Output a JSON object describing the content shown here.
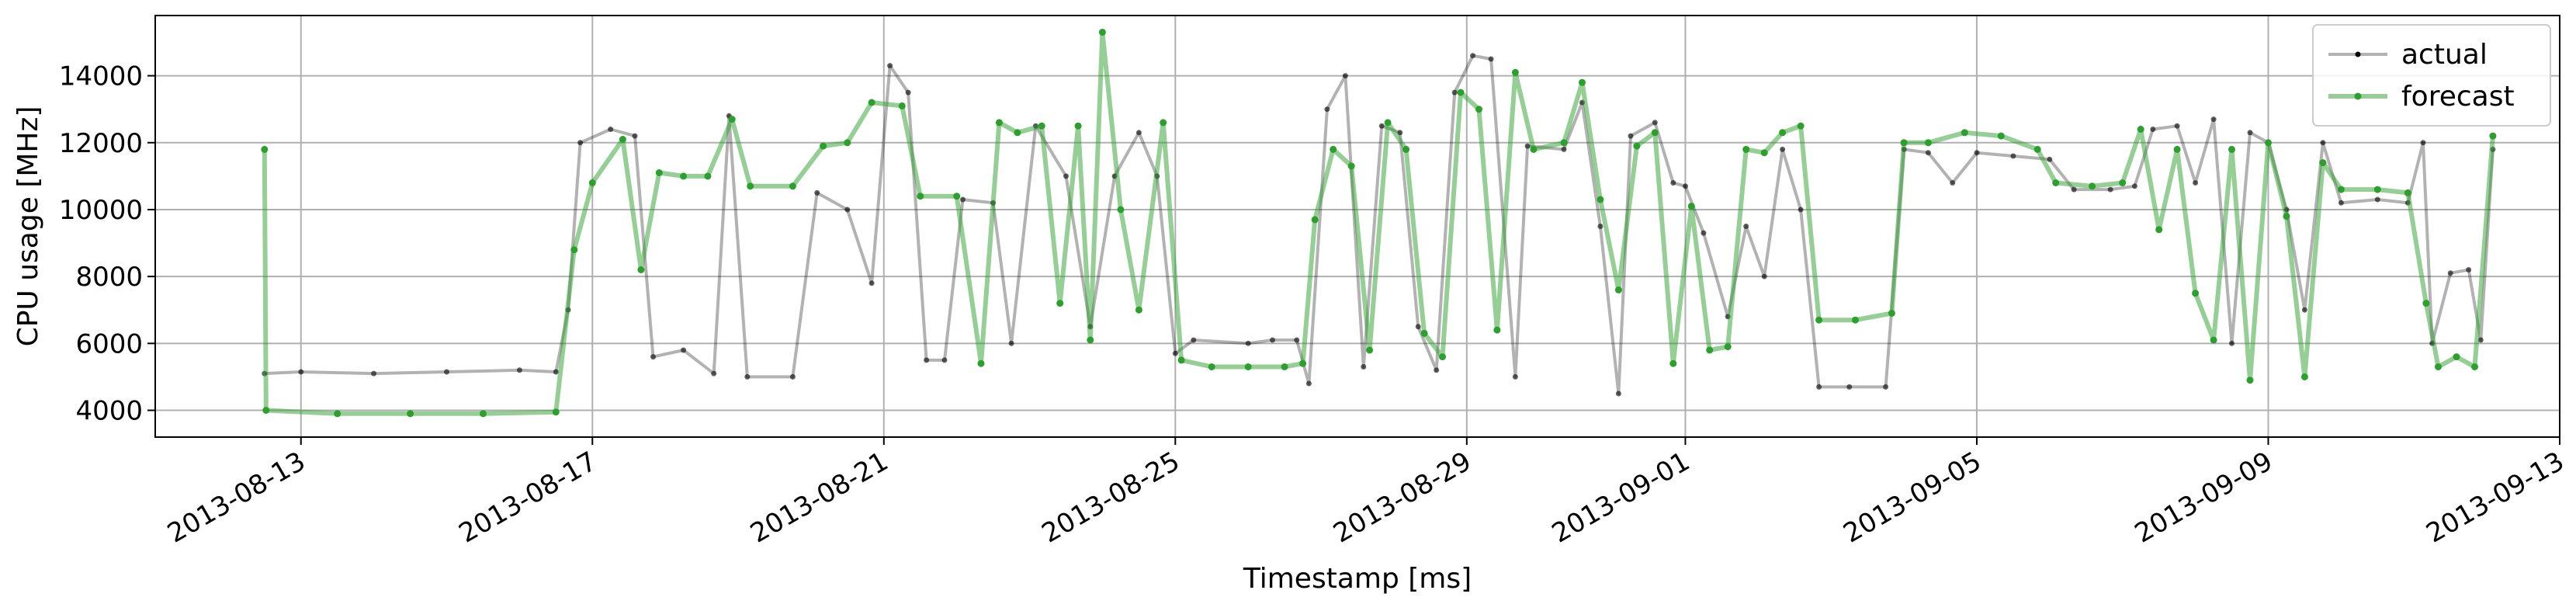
{
  "chart_data": {
    "type": "line",
    "title": "",
    "xlabel": "Timestamp [ms]",
    "ylabel": "CPU usage [MHz]",
    "x_type": "date",
    "xlim": [
      "2013-08-11",
      "2013-09-13"
    ],
    "ylim": [
      3200,
      15800
    ],
    "x_ticks": [
      "2013-08-13",
      "2013-08-17",
      "2013-08-21",
      "2013-08-25",
      "2013-08-29",
      "2013-09-01",
      "2013-09-05",
      "2013-09-09",
      "2013-09-13"
    ],
    "y_ticks": [
      4000,
      6000,
      8000,
      10000,
      12000,
      14000
    ],
    "grid": true,
    "legend_position": "top-right",
    "series": [
      {
        "name": "actual",
        "color": "#000000",
        "points": [
          [
            "2013-08-12 12:00",
            5100
          ],
          [
            "2013-08-13 00:00",
            5150
          ],
          [
            "2013-08-14 00:00",
            5100
          ],
          [
            "2013-08-15 00:00",
            5150
          ],
          [
            "2013-08-16 00:00",
            5200
          ],
          [
            "2013-08-16 12:00",
            5150
          ],
          [
            "2013-08-16 16:00",
            7000
          ],
          [
            "2013-08-16 20:00",
            12000
          ],
          [
            "2013-08-17 06:00",
            12400
          ],
          [
            "2013-08-17 14:00",
            12200
          ],
          [
            "2013-08-17 20:00",
            5600
          ],
          [
            "2013-08-18 06:00",
            5800
          ],
          [
            "2013-08-18 16:00",
            5100
          ],
          [
            "2013-08-18 21:00",
            12800
          ],
          [
            "2013-08-19 03:00",
            5000
          ],
          [
            "2013-08-19 18:00",
            5000
          ],
          [
            "2013-08-20 02:00",
            10500
          ],
          [
            "2013-08-20 12:00",
            10000
          ],
          [
            "2013-08-20 20:00",
            7800
          ],
          [
            "2013-08-21 02:00",
            14300
          ],
          [
            "2013-08-21 08:00",
            13500
          ],
          [
            "2013-08-21 14:00",
            5500
          ],
          [
            "2013-08-21 20:00",
            5500
          ],
          [
            "2013-08-22 02:00",
            10300
          ],
          [
            "2013-08-22 12:00",
            10200
          ],
          [
            "2013-08-22 18:00",
            6000
          ],
          [
            "2013-08-23 02:00",
            12500
          ],
          [
            "2013-08-23 12:00",
            11000
          ],
          [
            "2013-08-23 20:00",
            6500
          ],
          [
            "2013-08-24 04:00",
            11000
          ],
          [
            "2013-08-24 12:00",
            12300
          ],
          [
            "2013-08-24 18:00",
            11000
          ],
          [
            "2013-08-25 00:00",
            5700
          ],
          [
            "2013-08-25 06:00",
            6100
          ],
          [
            "2013-08-26 00:00",
            6000
          ],
          [
            "2013-08-26 08:00",
            6100
          ],
          [
            "2013-08-26 16:00",
            6100
          ],
          [
            "2013-08-26 20:00",
            4800
          ],
          [
            "2013-08-27 02:00",
            13000
          ],
          [
            "2013-08-27 08:00",
            14000
          ],
          [
            "2013-08-27 14:00",
            5300
          ],
          [
            "2013-08-27 20:00",
            12500
          ],
          [
            "2013-08-28 02:00",
            12300
          ],
          [
            "2013-08-28 08:00",
            6500
          ],
          [
            "2013-08-28 14:00",
            5200
          ],
          [
            "2013-08-28 20:00",
            13500
          ],
          [
            "2013-08-29 02:00",
            14600
          ],
          [
            "2013-08-29 08:00",
            14500
          ],
          [
            "2013-08-29 16:00",
            5000
          ],
          [
            "2013-08-29 20:00",
            11900
          ],
          [
            "2013-08-30 08:00",
            11800
          ],
          [
            "2013-08-30 14:00",
            13200
          ],
          [
            "2013-08-30 20:00",
            9500
          ],
          [
            "2013-08-31 02:00",
            4500
          ],
          [
            "2013-08-31 06:00",
            12200
          ],
          [
            "2013-08-31 14:00",
            12600
          ],
          [
            "2013-08-31 20:00",
            10800
          ],
          [
            "2013-09-01 00:00",
            10700
          ],
          [
            "2013-09-01 06:00",
            9300
          ],
          [
            "2013-09-01 14:00",
            6800
          ],
          [
            "2013-09-01 20:00",
            9500
          ],
          [
            "2013-09-02 02:00",
            8000
          ],
          [
            "2013-09-02 08:00",
            11800
          ],
          [
            "2013-09-02 14:00",
            10000
          ],
          [
            "2013-09-02 20:00",
            4700
          ],
          [
            "2013-09-03 06:00",
            4700
          ],
          [
            "2013-09-03 18:00",
            4700
          ],
          [
            "2013-09-04 00:00",
            11800
          ],
          [
            "2013-09-04 08:00",
            11700
          ],
          [
            "2013-09-04 16:00",
            10800
          ],
          [
            "2013-09-05 00:00",
            11700
          ],
          [
            "2013-09-05 12:00",
            11600
          ],
          [
            "2013-09-06 00:00",
            11500
          ],
          [
            "2013-09-06 08:00",
            10600
          ],
          [
            "2013-09-06 20:00",
            10600
          ],
          [
            "2013-09-07 04:00",
            10700
          ],
          [
            "2013-09-07 10:00",
            12400
          ],
          [
            "2013-09-07 18:00",
            12500
          ],
          [
            "2013-09-08 00:00",
            10800
          ],
          [
            "2013-09-08 06:00",
            12700
          ],
          [
            "2013-09-08 12:00",
            6000
          ],
          [
            "2013-09-08 18:00",
            12300
          ],
          [
            "2013-09-09 00:00",
            12000
          ],
          [
            "2013-09-09 06:00",
            10000
          ],
          [
            "2013-09-09 12:00",
            7000
          ],
          [
            "2013-09-09 18:00",
            12000
          ],
          [
            "2013-09-10 00:00",
            10200
          ],
          [
            "2013-09-10 12:00",
            10300
          ],
          [
            "2013-09-10 22:00",
            10200
          ],
          [
            "2013-09-11 03:00",
            12000
          ],
          [
            "2013-09-11 06:00",
            6000
          ],
          [
            "2013-09-11 12:00",
            8100
          ],
          [
            "2013-09-11 18:00",
            8200
          ],
          [
            "2013-09-11 22:00",
            6100
          ],
          [
            "2013-09-12 02:00",
            11800
          ]
        ]
      },
      {
        "name": "forecast",
        "color": "#2ca02c",
        "points": [
          [
            "2013-08-12 12:00",
            11800
          ],
          [
            "2013-08-12 12:30",
            4000
          ],
          [
            "2013-08-13 12:00",
            3900
          ],
          [
            "2013-08-14 12:00",
            3900
          ],
          [
            "2013-08-15 12:00",
            3900
          ],
          [
            "2013-08-16 12:00",
            3950
          ],
          [
            "2013-08-16 18:00",
            8800
          ],
          [
            "2013-08-17 00:00",
            10800
          ],
          [
            "2013-08-17 10:00",
            12100
          ],
          [
            "2013-08-17 16:00",
            8200
          ],
          [
            "2013-08-17 22:00",
            11100
          ],
          [
            "2013-08-18 06:00",
            11000
          ],
          [
            "2013-08-18 14:00",
            11000
          ],
          [
            "2013-08-18 22:00",
            12700
          ],
          [
            "2013-08-19 04:00",
            10700
          ],
          [
            "2013-08-19 18:00",
            10700
          ],
          [
            "2013-08-20 04:00",
            11900
          ],
          [
            "2013-08-20 12:00",
            12000
          ],
          [
            "2013-08-20 20:00",
            13200
          ],
          [
            "2013-08-21 06:00",
            13100
          ],
          [
            "2013-08-21 12:00",
            10400
          ],
          [
            "2013-08-22 00:00",
            10400
          ],
          [
            "2013-08-22 08:00",
            5400
          ],
          [
            "2013-08-22 14:00",
            12600
          ],
          [
            "2013-08-22 20:00",
            12300
          ],
          [
            "2013-08-23 04:00",
            12500
          ],
          [
            "2013-08-23 10:00",
            7200
          ],
          [
            "2013-08-23 16:00",
            12500
          ],
          [
            "2013-08-23 20:00",
            6100
          ],
          [
            "2013-08-24 00:00",
            15300
          ],
          [
            "2013-08-24 06:00",
            10000
          ],
          [
            "2013-08-24 12:00",
            7000
          ],
          [
            "2013-08-24 20:00",
            12600
          ],
          [
            "2013-08-25 02:00",
            5500
          ],
          [
            "2013-08-25 12:00",
            5300
          ],
          [
            "2013-08-26 00:00",
            5300
          ],
          [
            "2013-08-26 12:00",
            5300
          ],
          [
            "2013-08-26 18:00",
            5400
          ],
          [
            "2013-08-26 22:00",
            9700
          ],
          [
            "2013-08-27 04:00",
            11800
          ],
          [
            "2013-08-27 10:00",
            11300
          ],
          [
            "2013-08-27 16:00",
            5800
          ],
          [
            "2013-08-27 22:00",
            12600
          ],
          [
            "2013-08-28 04:00",
            11800
          ],
          [
            "2013-08-28 10:00",
            6300
          ],
          [
            "2013-08-28 16:00",
            5600
          ],
          [
            "2013-08-28 22:00",
            13500
          ],
          [
            "2013-08-29 04:00",
            13000
          ],
          [
            "2013-08-29 10:00",
            6400
          ],
          [
            "2013-08-29 16:00",
            14100
          ],
          [
            "2013-08-29 22:00",
            11800
          ],
          [
            "2013-08-30 08:00",
            12000
          ],
          [
            "2013-08-30 14:00",
            13800
          ],
          [
            "2013-08-30 20:00",
            10300
          ],
          [
            "2013-08-31 02:00",
            7600
          ],
          [
            "2013-08-31 08:00",
            11900
          ],
          [
            "2013-08-31 14:00",
            12300
          ],
          [
            "2013-08-31 20:00",
            5400
          ],
          [
            "2013-09-01 02:00",
            10100
          ],
          [
            "2013-09-01 08:00",
            5800
          ],
          [
            "2013-09-01 14:00",
            5900
          ],
          [
            "2013-09-01 20:00",
            11800
          ],
          [
            "2013-09-02 02:00",
            11700
          ],
          [
            "2013-09-02 08:00",
            12300
          ],
          [
            "2013-09-02 14:00",
            12500
          ],
          [
            "2013-09-02 20:00",
            6700
          ],
          [
            "2013-09-03 08:00",
            6700
          ],
          [
            "2013-09-03 20:00",
            6900
          ],
          [
            "2013-09-04 00:00",
            12000
          ],
          [
            "2013-09-04 08:00",
            12000
          ],
          [
            "2013-09-04 20:00",
            12300
          ],
          [
            "2013-09-05 08:00",
            12200
          ],
          [
            "2013-09-05 20:00",
            11800
          ],
          [
            "2013-09-06 02:00",
            10800
          ],
          [
            "2013-09-06 14:00",
            10700
          ],
          [
            "2013-09-07 00:00",
            10800
          ],
          [
            "2013-09-07 06:00",
            12400
          ],
          [
            "2013-09-07 12:00",
            9400
          ],
          [
            "2013-09-07 18:00",
            11800
          ],
          [
            "2013-09-08 00:00",
            7500
          ],
          [
            "2013-09-08 06:00",
            6100
          ],
          [
            "2013-09-08 12:00",
            11800
          ],
          [
            "2013-09-08 18:00",
            4900
          ],
          [
            "2013-09-09 00:00",
            12000
          ],
          [
            "2013-09-09 06:00",
            9800
          ],
          [
            "2013-09-09 12:00",
            5000
          ],
          [
            "2013-09-09 18:00",
            11400
          ],
          [
            "2013-09-10 00:00",
            10600
          ],
          [
            "2013-09-10 12:00",
            10600
          ],
          [
            "2013-09-10 22:00",
            10500
          ],
          [
            "2013-09-11 04:00",
            7200
          ],
          [
            "2013-09-11 08:00",
            5300
          ],
          [
            "2013-09-11 14:00",
            5600
          ],
          [
            "2013-09-11 20:00",
            5300
          ],
          [
            "2013-09-12 02:00",
            12200
          ]
        ]
      }
    ]
  }
}
